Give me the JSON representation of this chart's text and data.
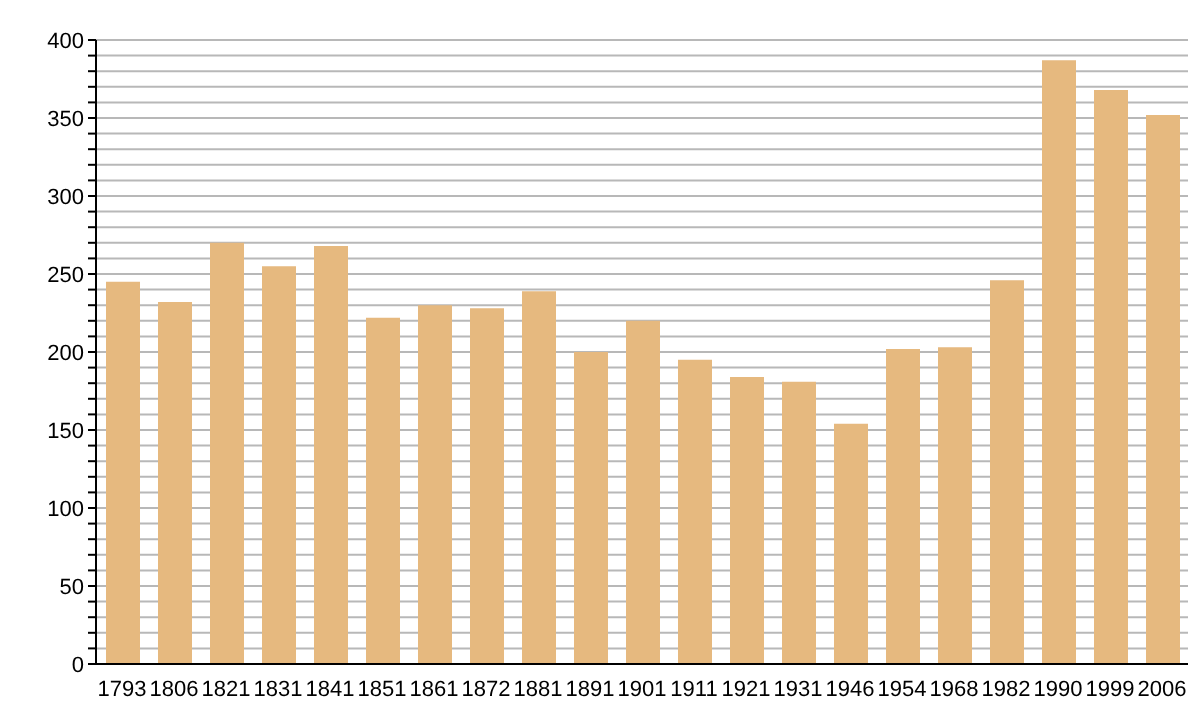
{
  "chart_data": {
    "type": "bar",
    "categories": [
      "1793",
      "1806",
      "1821",
      "1831",
      "1841",
      "1851",
      "1861",
      "1872",
      "1881",
      "1891",
      "1901",
      "1911",
      "1921",
      "1931",
      "1946",
      "1954",
      "1968",
      "1982",
      "1990",
      "1999",
      "2006"
    ],
    "values": [
      245,
      232,
      270,
      255,
      268,
      222,
      230,
      228,
      239,
      200,
      220,
      195,
      184,
      181,
      154,
      202,
      203,
      246,
      387,
      368,
      352
    ],
    "color": "#e6b97f",
    "ylim": [
      0,
      400
    ],
    "yticks": [
      0,
      {
        "value": 10,
        "label": null
      },
      {
        "value": 20,
        "label": null
      },
      {
        "value": 30,
        "label": null
      },
      {
        "value": 40,
        "label": null
      },
      50,
      {
        "value": 60,
        "label": null
      },
      {
        "value": 70,
        "label": null
      },
      {
        "value": 80,
        "label": null
      },
      {
        "value": 90,
        "label": null
      },
      100,
      {
        "value": 110,
        "label": null
      },
      {
        "value": 120,
        "label": null
      },
      {
        "value": 130,
        "label": null
      },
      {
        "value": 140,
        "label": null
      },
      150,
      {
        "value": 160,
        "label": null
      },
      {
        "value": 170,
        "label": null
      },
      {
        "value": 180,
        "label": null
      },
      {
        "value": 190,
        "label": null
      },
      200,
      {
        "value": 210,
        "label": null
      },
      {
        "value": 220,
        "label": null
      },
      {
        "value": 230,
        "label": null
      },
      {
        "value": 240,
        "label": null
      },
      250,
      {
        "value": 260,
        "label": null
      },
      {
        "value": 270,
        "label": null
      },
      {
        "value": 280,
        "label": null
      },
      {
        "value": 290,
        "label": null
      },
      300,
      {
        "value": 310,
        "label": null
      },
      {
        "value": 320,
        "label": null
      },
      {
        "value": 330,
        "label": null
      },
      {
        "value": 340,
        "label": null
      },
      350,
      {
        "value": 360,
        "label": null
      },
      {
        "value": 370,
        "label": null
      },
      {
        "value": 380,
        "label": null
      },
      {
        "value": 390,
        "label": null
      },
      400
    ],
    "grid": "y",
    "legend": false
  }
}
